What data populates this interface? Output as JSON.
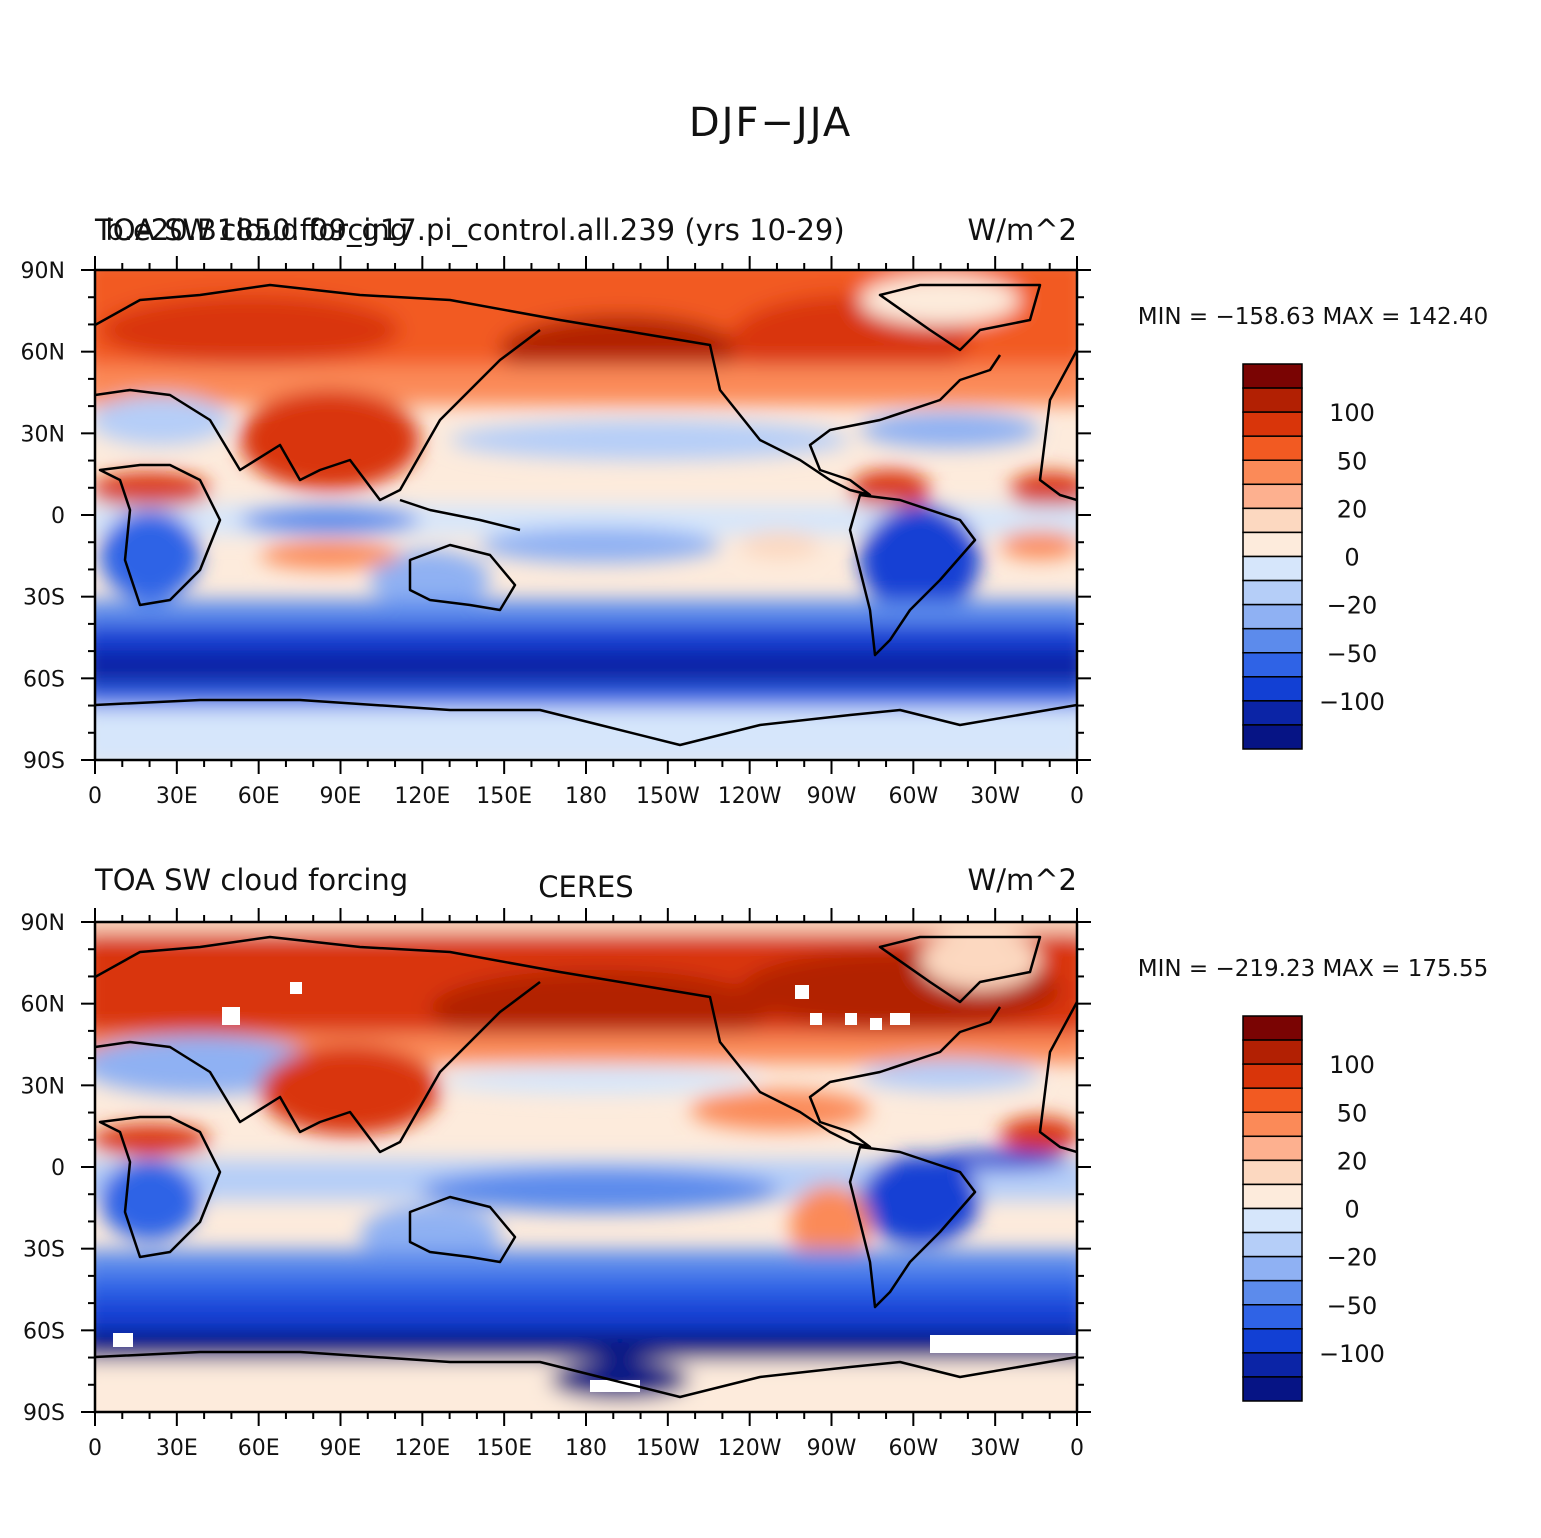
{
  "title": "DJF−JJA",
  "panels": [
    {
      "left_title": "TOA SW cloud forcing",
      "center_title": "b.e20.B1850.f09_g17.pi_control.all.239 (yrs 10-29)",
      "right_title": "W/m^2",
      "min_max": "MIN = −158.63 MAX = 142.40",
      "colorbar_labels": [
        "100",
        "50",
        "20",
        "0",
        "−20",
        "−50",
        "−100"
      ]
    },
    {
      "left_title": "TOA SW cloud forcing",
      "center_title": "CERES",
      "right_title": "W/m^2",
      "min_max": "MIN = −219.23 MAX = 175.55",
      "colorbar_labels": [
        "100",
        "50",
        "20",
        "0",
        "−20",
        "−50",
        "−100"
      ]
    }
  ],
  "axes": {
    "x_tick_labels": [
      "0",
      "30E",
      "60E",
      "90E",
      "120E",
      "150E",
      "180",
      "150W",
      "120W",
      "90W",
      "60W",
      "30W",
      "0"
    ],
    "y_tick_labels": [
      "90N",
      "60N",
      "30N",
      "0",
      "30S",
      "60S",
      "90S"
    ]
  },
  "colorbar_colors": [
    "#7a0403",
    "#b22003",
    "#d9350a",
    "#f25a22",
    "#fb8a58",
    "#fdb08f",
    "#fcd8c0",
    "#fdebdc",
    "#d6e6fb",
    "#b5cef8",
    "#8fb1f3",
    "#5c8bec",
    "#2f63e6",
    "#1240d4",
    "#0b24a6",
    "#061485"
  ]
}
